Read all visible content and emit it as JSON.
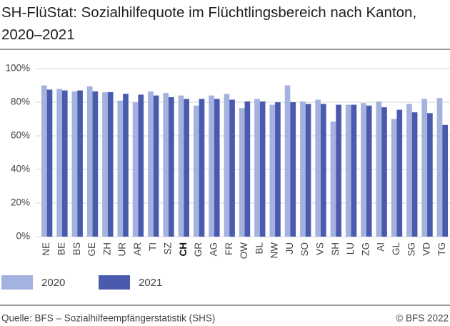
{
  "chart_data": {
    "type": "bar",
    "title": "SH-FlüStat: Sozialhilfequote im Flüchtlingsbereich nach Kanton, 2020–2021",
    "categories": [
      "NE",
      "BE",
      "BS",
      "GE",
      "ZH",
      "UR",
      "AR",
      "TI",
      "SZ",
      "CH",
      "GR",
      "AG",
      "FR",
      "OW",
      "BL",
      "NW",
      "JU",
      "SO",
      "VS",
      "SH",
      "LU",
      "ZG",
      "AI",
      "GL",
      "SG",
      "VD",
      "TG"
    ],
    "highlight_index": 9,
    "series": [
      {
        "name": "2020",
        "color": "#a4b2e0",
        "values": [
          90,
          88,
          86.5,
          89.5,
          86,
          81,
          80,
          86.5,
          85.5,
          84,
          78,
          84,
          85,
          76.5,
          82,
          78.5,
          90,
          80.5,
          81.5,
          68.5,
          78.5,
          79.5,
          80.5,
          70,
          79,
          82,
          82.5
        ]
      },
      {
        "name": "2021",
        "color": "#4a5aad",
        "values": [
          87.5,
          87,
          87,
          86.5,
          86,
          85,
          84.5,
          84,
          83,
          82,
          82,
          82,
          81.5,
          80.5,
          80.5,
          80,
          80,
          79,
          79,
          78.5,
          78.5,
          78,
          77,
          75.5,
          74,
          73.5,
          66.5
        ]
      }
    ],
    "ylim": [
      0,
      100
    ],
    "yticks": [
      {
        "value": 0,
        "label": "0%"
      },
      {
        "value": 20,
        "label": "20%"
      },
      {
        "value": 40,
        "label": "40%"
      },
      {
        "value": 60,
        "label": "60%"
      },
      {
        "value": 80,
        "label": "80%"
      },
      {
        "value": 100,
        "label": "100%"
      }
    ],
    "grid": true,
    "source": "Quelle: BFS – Sozialhilfeempfängerstatistik (SHS)",
    "credit": "© BFS 2022"
  }
}
